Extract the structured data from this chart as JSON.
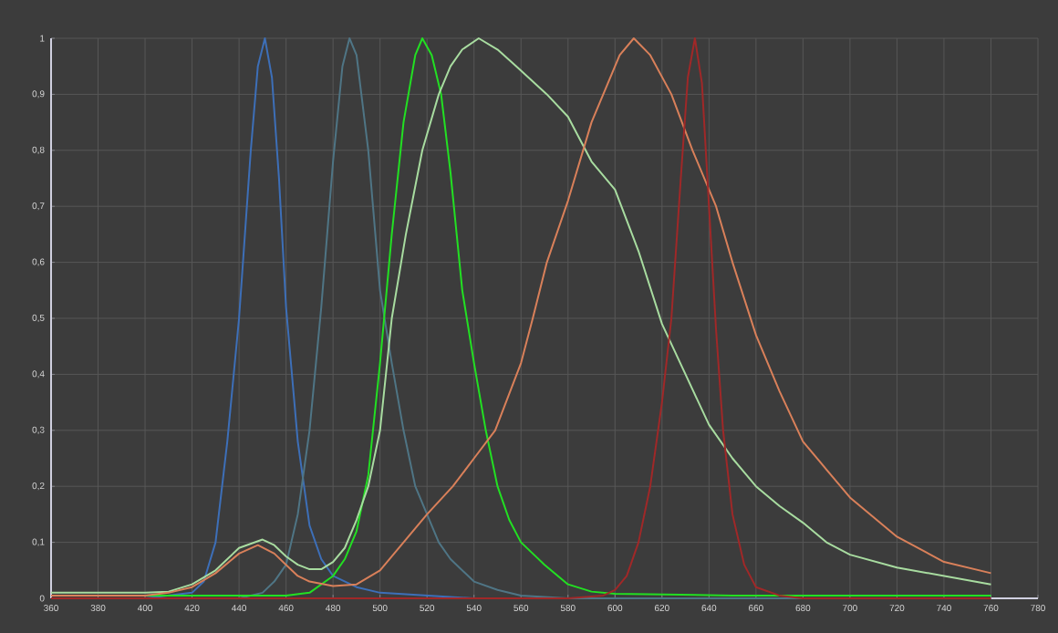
{
  "chart_data": {
    "type": "line",
    "xlim": [
      360,
      780
    ],
    "ylim": [
      0,
      1
    ],
    "grid": true,
    "marker": "none",
    "line_style": "solid",
    "xticks": [
      360,
      380,
      400,
      420,
      440,
      460,
      480,
      500,
      520,
      540,
      560,
      580,
      600,
      620,
      640,
      660,
      680,
      700,
      720,
      740,
      760,
      780
    ],
    "yticks": [
      0,
      {
        "value": 0.1,
        "label": "0,1"
      },
      {
        "value": 0.2,
        "label": "0,2"
      },
      {
        "value": 0.3,
        "label": "0,3"
      },
      {
        "value": 0.4,
        "label": "0,4"
      },
      {
        "value": 0.5,
        "label": "0,5"
      },
      {
        "value": 0.6,
        "label": "0,6"
      },
      {
        "value": 0.7,
        "label": "0,7"
      },
      {
        "value": 0.8,
        "label": "0,8"
      },
      {
        "value": 0.9,
        "label": "0,9"
      },
      1
    ],
    "series": [
      {
        "color": "#3d6fb8",
        "x": [
          360,
          400,
          420,
          425,
          430,
          435,
          440,
          445,
          448,
          451,
          454,
          457,
          460,
          465,
          470,
          475,
          480,
          490,
          500,
          520,
          540,
          760
        ],
        "values": [
          0,
          0,
          0.01,
          0.03,
          0.1,
          0.28,
          0.5,
          0.8,
          0.95,
          1,
          0.93,
          0.75,
          0.52,
          0.28,
          0.13,
          0.07,
          0.04,
          0.02,
          0.01,
          0.005,
          0,
          0
        ]
      },
      {
        "color": "#4f7585",
        "x": [
          360,
          440,
          450,
          455,
          460,
          465,
          470,
          475,
          480,
          484,
          487,
          490,
          495,
          500,
          505,
          510,
          515,
          520,
          525,
          530,
          540,
          550,
          560,
          580,
          760
        ],
        "values": [
          0,
          0,
          0.01,
          0.03,
          0.06,
          0.15,
          0.3,
          0.52,
          0.78,
          0.95,
          1,
          0.97,
          0.8,
          0.55,
          0.42,
          0.3,
          0.2,
          0.15,
          0.1,
          0.07,
          0.03,
          0.015,
          0.005,
          0,
          0
        ]
      },
      {
        "color": "#22e022",
        "x": [
          360,
          400,
          460,
          470,
          480,
          485,
          490,
          495,
          500,
          505,
          510,
          515,
          518,
          522,
          526,
          530,
          535,
          540,
          545,
          550,
          555,
          560,
          565,
          570,
          580,
          590,
          600,
          650,
          760
        ],
        "values": [
          0.005,
          0.005,
          0.005,
          0.01,
          0.04,
          0.07,
          0.12,
          0.22,
          0.42,
          0.65,
          0.85,
          0.97,
          1,
          0.97,
          0.9,
          0.76,
          0.55,
          0.42,
          0.3,
          0.2,
          0.14,
          0.1,
          0.08,
          0.06,
          0.025,
          0.012,
          0.008,
          0.005,
          0.005
        ]
      },
      {
        "color": "#a8dca0",
        "x": [
          360,
          400,
          410,
          420,
          430,
          440,
          450,
          455,
          460,
          465,
          470,
          475,
          480,
          485,
          490,
          495,
          500,
          505,
          511,
          518,
          525,
          530,
          535,
          542,
          550,
          558,
          571,
          580,
          590,
          600,
          610,
          620,
          630,
          640,
          650,
          660,
          670,
          680,
          690,
          700,
          720,
          740,
          760
        ],
        "values": [
          0.01,
          0.01,
          0.012,
          0.025,
          0.05,
          0.09,
          0.105,
          0.095,
          0.075,
          0.06,
          0.052,
          0.052,
          0.065,
          0.09,
          0.14,
          0.2,
          0.3,
          0.5,
          0.65,
          0.8,
          0.9,
          0.95,
          0.98,
          1,
          0.98,
          0.95,
          0.9,
          0.86,
          0.78,
          0.73,
          0.62,
          0.49,
          0.4,
          0.31,
          0.25,
          0.2,
          0.165,
          0.135,
          0.1,
          0.078,
          0.055,
          0.04,
          0.025
        ]
      },
      {
        "color": "#d9805a",
        "x": [
          360,
          400,
          410,
          420,
          430,
          440,
          448,
          455,
          460,
          465,
          470,
          480,
          490,
          500,
          510,
          520,
          531,
          540,
          549,
          560,
          565,
          571,
          580,
          590,
          595,
          602,
          608,
          615,
          624,
          633,
          643,
          650,
          660,
          670,
          680,
          690,
          700,
          720,
          740,
          760
        ],
        "values": [
          0.005,
          0.005,
          0.01,
          0.02,
          0.045,
          0.08,
          0.095,
          0.08,
          0.06,
          0.04,
          0.03,
          0.022,
          0.025,
          0.05,
          0.1,
          0.15,
          0.2,
          0.25,
          0.3,
          0.42,
          0.5,
          0.6,
          0.71,
          0.85,
          0.9,
          0.97,
          1,
          0.97,
          0.9,
          0.8,
          0.7,
          0.6,
          0.47,
          0.37,
          0.28,
          0.23,
          0.18,
          0.11,
          0.065,
          0.045
        ]
      },
      {
        "color": "#a02828",
        "x": [
          360,
          580,
          595,
          600,
          605,
          610,
          615,
          620,
          624,
          628,
          631,
          634,
          637,
          640,
          643,
          646,
          650,
          655,
          660,
          670,
          680,
          760
        ],
        "values": [
          0,
          0,
          0.005,
          0.015,
          0.04,
          0.1,
          0.2,
          0.35,
          0.5,
          0.75,
          0.93,
          1,
          0.92,
          0.7,
          0.48,
          0.3,
          0.15,
          0.06,
          0.02,
          0.005,
          0,
          0
        ]
      }
    ]
  }
}
